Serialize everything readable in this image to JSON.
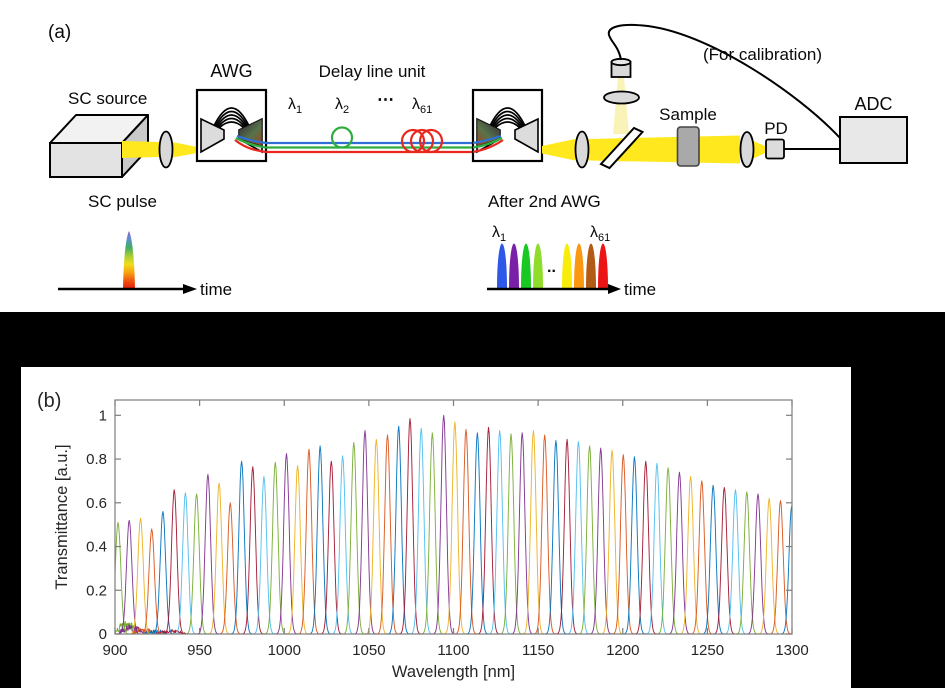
{
  "page": {
    "panel_a": "(a)",
    "panel_b": "(b)"
  },
  "schematic": {
    "sc_source": "SC source",
    "awg": "AWG",
    "delay_line_unit": "Delay line unit",
    "lambda_symbol": "λ",
    "sub_1": "1",
    "sub_2": "2",
    "sub_61": "61",
    "dots_mid": "⋯",
    "for_calibration": "(For calibration)",
    "sample": "Sample",
    "pd": "PD",
    "adc": "ADC",
    "sc_pulse": "SC pulse",
    "after_2nd_awg": "After 2nd AWG",
    "time": "time",
    "pulse_dots": "..",
    "colors": {
      "beam_yellow": "#ffe81e",
      "beam_pale": "#faf3b8",
      "fiber_blue": "#2f6fd6",
      "fiber_green": "#2fae3e",
      "fiber_red": "#e8281e",
      "sc_pulse_gradient": [
        "#8a63c9",
        "#5b8fd0",
        "#3fae62",
        "#a8cc33",
        "#efdd1f",
        "#f7a410",
        "#ef5510",
        "#e81a0e"
      ],
      "after_pulse_colors": [
        "#2e59e8",
        "#7a1fa8",
        "#19c823",
        "#8fdc2a",
        "#f7ec0a",
        "#fb9810",
        "#b35b14",
        "#ec1414"
      ]
    }
  },
  "chart_data": {
    "type": "line",
    "title": "",
    "xlabel": "Wavelength [nm]",
    "ylabel": "Transmittance [a.u.]",
    "xlim": [
      900,
      1300
    ],
    "ylim": [
      0,
      1.07
    ],
    "xticks": [
      900,
      950,
      1000,
      1050,
      1100,
      1150,
      1200,
      1250,
      1300
    ],
    "yticks": [
      0,
      0.2,
      0.4,
      0.6,
      0.8,
      1
    ],
    "grid": false,
    "legend": false,
    "series_description": "61 AWG channel transmittance spectra, one narrow peak per channel, line colors cycling through 7 hues",
    "color_cycle": [
      "#77AC30",
      "#7E2F8E",
      "#EDB120",
      "#D95319",
      "#0072BD",
      "#A2142F",
      "#4DBEEE"
    ],
    "peak_sigma_nm": 1.6,
    "peak_centers_nm": [
      901.8,
      908.4,
      915.1,
      921.7,
      928.3,
      935.0,
      941.6,
      948.2,
      954.9,
      961.5,
      968.1,
      974.8,
      981.4,
      988.0,
      994.7,
      1001.3,
      1007.9,
      1014.6,
      1021.2,
      1027.8,
      1034.5,
      1041.1,
      1047.7,
      1054.4,
      1061.0,
      1067.6,
      1074.3,
      1080.9,
      1087.5,
      1094.2,
      1100.8,
      1107.4,
      1114.1,
      1120.7,
      1127.3,
      1134.0,
      1140.6,
      1147.2,
      1153.9,
      1160.5,
      1167.1,
      1173.8,
      1180.4,
      1187.0,
      1193.7,
      1200.3,
      1206.9,
      1213.6,
      1220.2,
      1226.8,
      1233.5,
      1240.1,
      1246.7,
      1253.4,
      1260.0,
      1266.6,
      1273.3,
      1279.9,
      1286.5,
      1293.2,
      1299.8
    ],
    "peak_heights": [
      0.51,
      0.52,
      0.53,
      0.48,
      0.56,
      0.66,
      0.645,
      0.64,
      0.73,
      0.69,
      0.6,
      0.79,
      0.765,
      0.72,
      0.785,
      0.825,
      0.77,
      0.845,
      0.86,
      0.79,
      0.815,
      0.875,
      0.93,
      0.89,
      0.91,
      0.95,
      0.985,
      0.94,
      0.92,
      1.0,
      0.97,
      0.935,
      0.92,
      0.945,
      0.93,
      0.915,
      0.92,
      0.93,
      0.91,
      0.885,
      0.89,
      0.88,
      0.86,
      0.85,
      0.84,
      0.82,
      0.81,
      0.79,
      0.78,
      0.76,
      0.74,
      0.72,
      0.7,
      0.68,
      0.67,
      0.66,
      0.65,
      0.64,
      0.62,
      0.61,
      0.585
    ],
    "baseline_noise": [
      {
        "x0": 900,
        "x1": 914,
        "amp": 0.06,
        "color": 0
      },
      {
        "x0": 902,
        "x1": 917,
        "amp": 0.045,
        "color": 1
      },
      {
        "x0": 910,
        "x1": 924,
        "amp": 0.03,
        "color": 3
      },
      {
        "x0": 917,
        "x1": 931,
        "amp": 0.02,
        "color": 4
      },
      {
        "x0": 924,
        "x1": 942,
        "amp": 0.018,
        "color": 5
      }
    ]
  }
}
